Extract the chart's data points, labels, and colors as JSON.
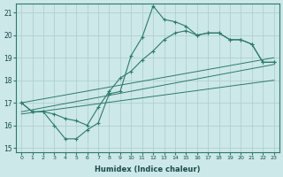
{
  "xlabel": "Humidex (Indice chaleur)",
  "bg_color": "#cce8e8",
  "grid_color": "#aacccc",
  "line_color": "#2d7a6a",
  "xlim": [
    -0.5,
    23.5
  ],
  "ylim": [
    14.8,
    21.4
  ],
  "xticks": [
    0,
    1,
    2,
    3,
    4,
    5,
    6,
    7,
    8,
    9,
    10,
    11,
    12,
    13,
    14,
    15,
    16,
    17,
    18,
    19,
    20,
    21,
    22,
    23
  ],
  "yticks": [
    15,
    16,
    17,
    18,
    19,
    20,
    21
  ],
  "series1_x": [
    0,
    1,
    2,
    3,
    4,
    5,
    6,
    7,
    8,
    9,
    10,
    11,
    12,
    13,
    14,
    15,
    16,
    17,
    18,
    19,
    20,
    21,
    22,
    23
  ],
  "series1_y": [
    17.0,
    16.6,
    16.6,
    16.0,
    15.4,
    15.4,
    15.8,
    16.1,
    17.4,
    17.5,
    19.1,
    19.9,
    21.3,
    20.7,
    20.6,
    20.4,
    20.0,
    20.1,
    20.1,
    19.8,
    19.8,
    19.6,
    18.8,
    18.8
  ],
  "series2_x": [
    0,
    1,
    2,
    3,
    4,
    5,
    6,
    7,
    8,
    9,
    10,
    11,
    12,
    13,
    14,
    15,
    16,
    17,
    18,
    19,
    20,
    21,
    22,
    23
  ],
  "series2_y": [
    17.0,
    16.6,
    16.6,
    16.5,
    16.3,
    16.2,
    16.0,
    16.8,
    17.5,
    18.1,
    18.4,
    18.9,
    19.3,
    19.8,
    20.1,
    20.2,
    20.0,
    20.1,
    20.1,
    19.8,
    19.8,
    19.6,
    18.8,
    18.8
  ],
  "line1_x": [
    0,
    23
  ],
  "line1_y": [
    17.0,
    19.0
  ],
  "line2_x": [
    0,
    23
  ],
  "line2_y": [
    16.6,
    18.7
  ],
  "line3_x": [
    0,
    23
  ],
  "line3_y": [
    16.5,
    18.0
  ]
}
